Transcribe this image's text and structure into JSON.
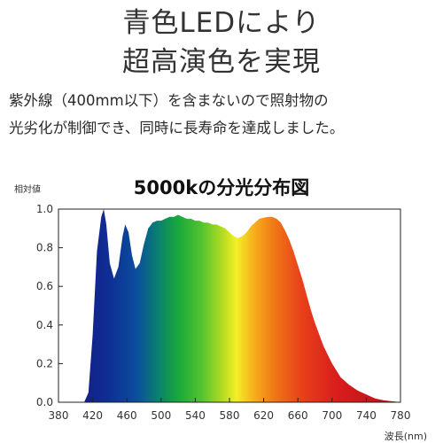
{
  "headline": {
    "line1": "青色LEDにより",
    "line2": "超高演色を実現"
  },
  "description": {
    "line1": "紫外線（400mm以下）を含まないので照射物の",
    "line2": "光劣化が制御でき、同時に長寿命を達成しました。"
  },
  "chart_data": {
    "type": "area",
    "title": "5000kの分光分布図",
    "ylabel": "相対値",
    "xlabel": "波長(nm)",
    "xlim": [
      380,
      780
    ],
    "ylim": [
      0,
      1.0
    ],
    "x_ticks": [
      "380",
      "420",
      "460",
      "500",
      "540",
      "580",
      "620",
      "660",
      "700",
      "740",
      "780"
    ],
    "y_ticks": [
      "0.0",
      "0.2",
      "0.4",
      "0.6",
      "0.8",
      "1.0"
    ],
    "grid": false,
    "fill": "visible-spectrum gradient",
    "series": [
      {
        "x": [
          380,
          400,
          410,
          415,
          420,
          425,
          430,
          433,
          436,
          440,
          445,
          450,
          455,
          458,
          462,
          466,
          470,
          475,
          480,
          485,
          490,
          495,
          500,
          505,
          510,
          515,
          520,
          525,
          530,
          535,
          540,
          545,
          550,
          555,
          560,
          565,
          570,
          575,
          580,
          585,
          590,
          595,
          600,
          605,
          610,
          615,
          620,
          625,
          630,
          635,
          640,
          645,
          650,
          655,
          660,
          665,
          670,
          675,
          680,
          690,
          700,
          710,
          720,
          730,
          740,
          750,
          760,
          770,
          780
        ],
        "y": [
          0,
          0,
          0,
          0.05,
          0.35,
          0.78,
          0.96,
          1.0,
          0.92,
          0.72,
          0.64,
          0.7,
          0.86,
          0.92,
          0.88,
          0.76,
          0.69,
          0.72,
          0.82,
          0.9,
          0.93,
          0.94,
          0.94,
          0.95,
          0.96,
          0.96,
          0.97,
          0.96,
          0.95,
          0.95,
          0.94,
          0.94,
          0.93,
          0.93,
          0.92,
          0.92,
          0.91,
          0.9,
          0.88,
          0.86,
          0.85,
          0.86,
          0.88,
          0.91,
          0.93,
          0.95,
          0.955,
          0.96,
          0.96,
          0.95,
          0.93,
          0.89,
          0.84,
          0.78,
          0.71,
          0.64,
          0.56,
          0.48,
          0.41,
          0.29,
          0.2,
          0.13,
          0.09,
          0.06,
          0.04,
          0.02,
          0.01,
          0.005,
          0
        ]
      }
    ]
  }
}
